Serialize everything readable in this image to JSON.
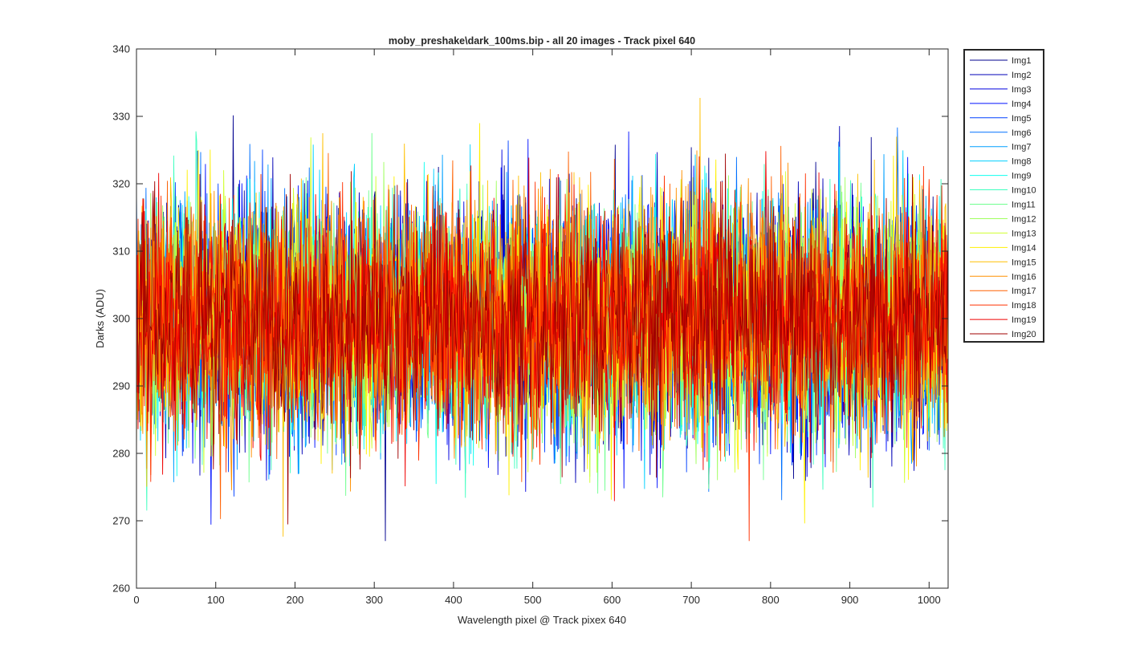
{
  "figure": {
    "background": "#ffffff",
    "axes_color": "#262626"
  },
  "chart_data": {
    "type": "line",
    "title": "moby_preshake\\dark_100ms.bip - all 20 images  - Track pixel 640",
    "xlabel": "Wavelength pixel @ Track pixex 640",
    "ylabel": "Darks (ADU)",
    "xlim": [
      0,
      1024
    ],
    "ylim": [
      260,
      340
    ],
    "xticks": [
      0,
      100,
      200,
      300,
      400,
      500,
      600,
      700,
      800,
      900,
      1000
    ],
    "yticks": [
      260,
      270,
      280,
      290,
      300,
      310,
      320,
      330,
      340
    ],
    "grid": false,
    "legend_position": "outside-top-right",
    "approx_distribution": {
      "mean": 300,
      "typical_min": 278,
      "typical_max": 324,
      "overall_min": 267,
      "overall_max": 334
    },
    "series": [
      {
        "name": "Img1",
        "color": "#00008F"
      },
      {
        "name": "Img2",
        "color": "#0000B7"
      },
      {
        "name": "Img3",
        "color": "#0000DF"
      },
      {
        "name": "Img4",
        "color": "#0010FF"
      },
      {
        "name": "Img5",
        "color": "#0040FF"
      },
      {
        "name": "Img6",
        "color": "#0070FF"
      },
      {
        "name": "Img7",
        "color": "#00A0FF"
      },
      {
        "name": "Img8",
        "color": "#00D0FF"
      },
      {
        "name": "Img9",
        "color": "#10FFEF"
      },
      {
        "name": "Img10",
        "color": "#40FFBF"
      },
      {
        "name": "Img11",
        "color": "#70FF8F"
      },
      {
        "name": "Img12",
        "color": "#A0FF5F"
      },
      {
        "name": "Img13",
        "color": "#D0FF2F"
      },
      {
        "name": "Img14",
        "color": "#FFF000"
      },
      {
        "name": "Img15",
        "color": "#FFC000"
      },
      {
        "name": "Img16",
        "color": "#FF9000"
      },
      {
        "name": "Img17",
        "color": "#FF6000"
      },
      {
        "name": "Img18",
        "color": "#FF3000"
      },
      {
        "name": "Img19",
        "color": "#EF0000"
      },
      {
        "name": "Img20",
        "color": "#A00000"
      }
    ]
  }
}
